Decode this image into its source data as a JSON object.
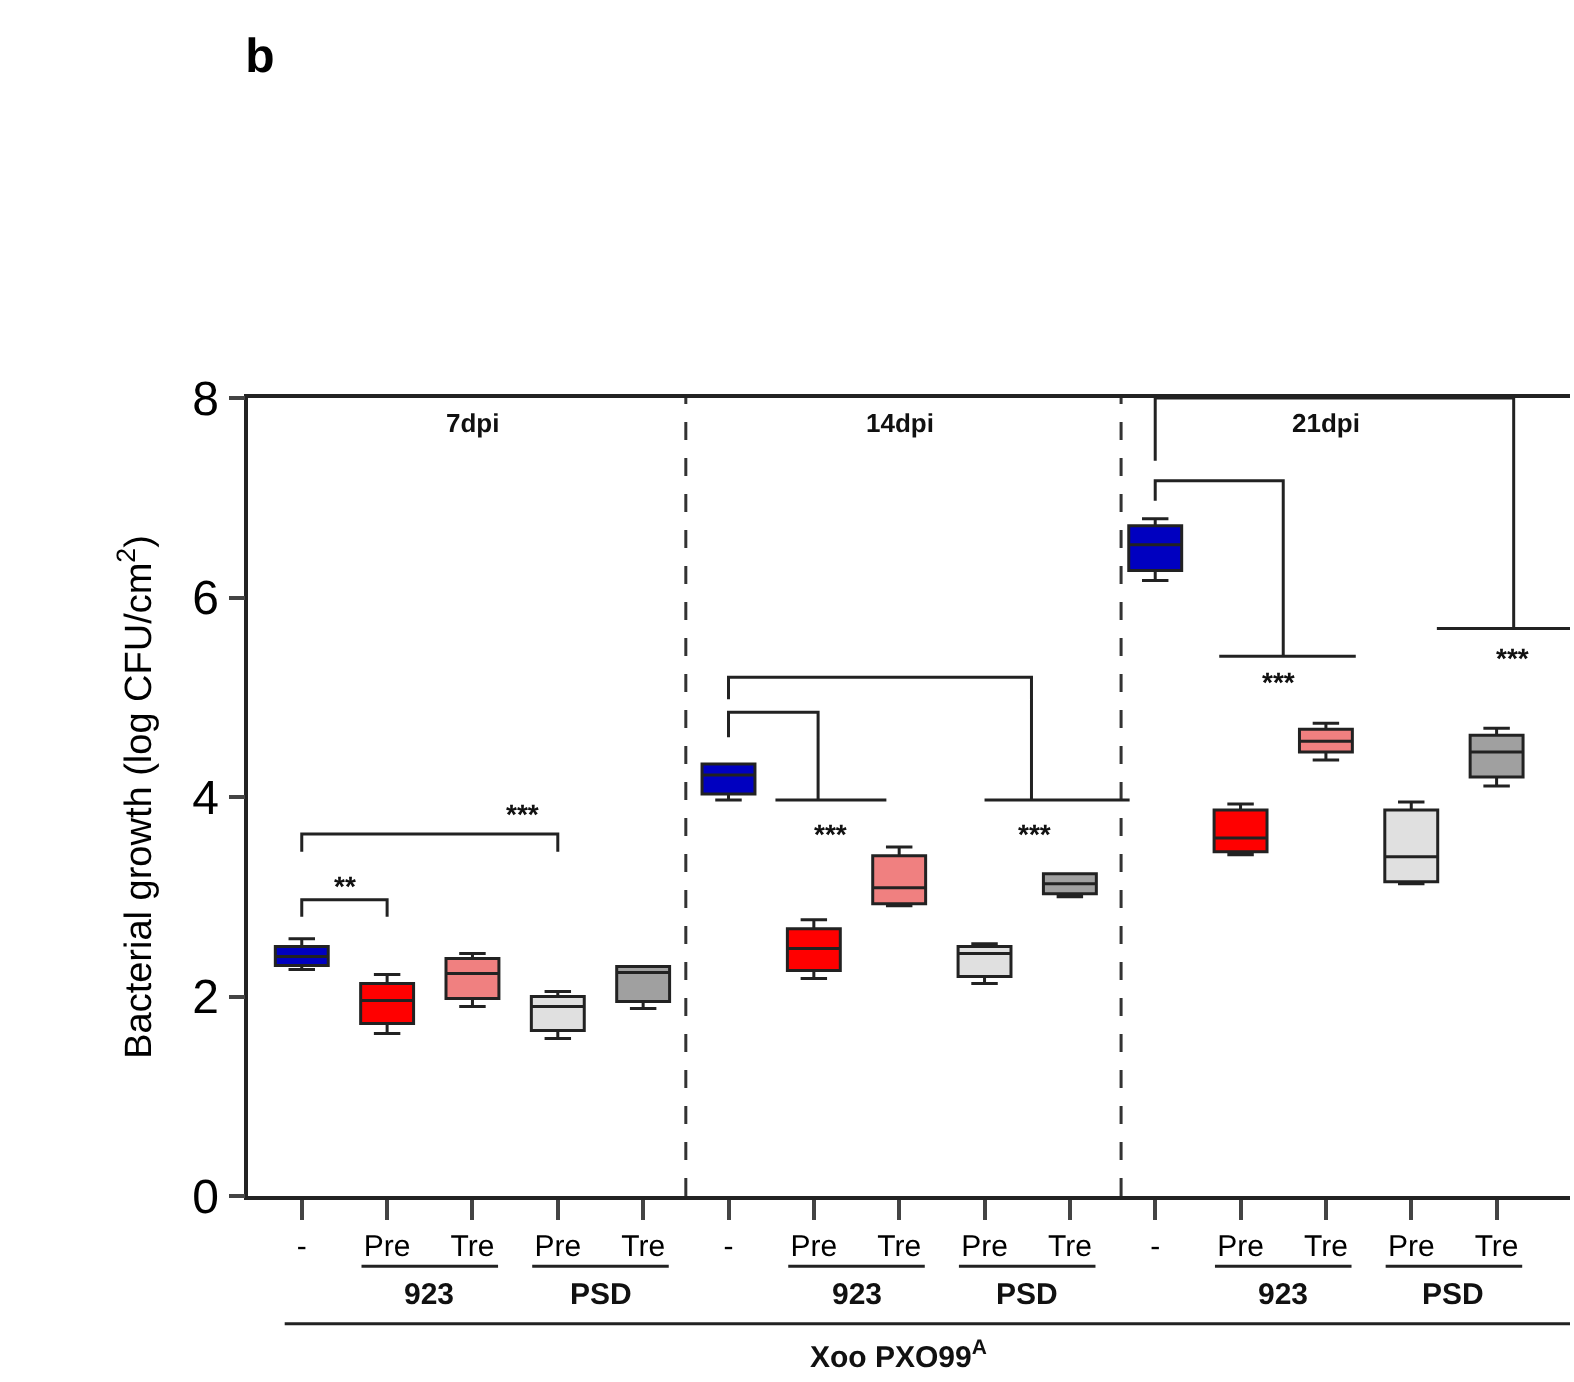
{
  "chart_data": {
    "type": "box",
    "title": "b",
    "ylabel": "Bacterial growth (log CFU/cm$^{2}$)",
    "categories": [
      "-",
      "Pre",
      "Tre",
      "Pre",
      "Tre",
      "-",
      "Pre",
      "Tre",
      "Pre",
      "Tre",
      "-",
      "Pre",
      "Tre",
      "Pre",
      "Tre"
    ],
    "colors": [
      "#0000c0",
      "#ff0000",
      "#f08080",
      "#e0e0e0",
      "#a0a0a0",
      "#0000c0",
      "#ff0000",
      "#f08080",
      "#e0e0e0",
      "#a0a0a0",
      "#0000c0",
      "#ff0000",
      "#f08080",
      "#e0e0e0",
      "#a0a0a0"
    ],
    "boxes": [
      {
        "low": 2.27,
        "q1": 2.31,
        "median": 2.4,
        "q3": 2.5,
        "high": 2.58
      },
      {
        "low": 1.63,
        "q1": 1.73,
        "median": 1.96,
        "q3": 2.13,
        "high": 2.22
      },
      {
        "low": 1.9,
        "q1": 1.98,
        "median": 2.23,
        "q3": 2.38,
        "high": 2.43
      },
      {
        "low": 1.58,
        "q1": 1.66,
        "median": 1.9,
        "q3": 2.0,
        "high": 2.05
      },
      {
        "low": 1.88,
        "q1": 1.95,
        "median": 2.24,
        "q3": 2.3,
        "high": 2.3
      },
      {
        "low": 3.97,
        "q1": 4.03,
        "median": 4.22,
        "q3": 4.33,
        "high": 4.33
      },
      {
        "low": 2.18,
        "q1": 2.26,
        "median": 2.48,
        "q3": 2.68,
        "high": 2.77
      },
      {
        "low": 2.91,
        "q1": 2.93,
        "median": 3.09,
        "q3": 3.41,
        "high": 3.5
      },
      {
        "low": 2.13,
        "q1": 2.2,
        "median": 2.43,
        "q3": 2.5,
        "high": 2.53
      },
      {
        "low": 3.0,
        "q1": 3.03,
        "median": 3.13,
        "q3": 3.23,
        "high": 3.23
      },
      {
        "low": 6.17,
        "q1": 6.27,
        "median": 6.53,
        "q3": 6.72,
        "high": 6.79
      },
      {
        "low": 3.42,
        "q1": 3.45,
        "median": 3.59,
        "q3": 3.87,
        "high": 3.93
      },
      {
        "low": 4.37,
        "q1": 4.45,
        "median": 4.56,
        "q3": 4.68,
        "high": 4.74
      },
      {
        "low": 3.13,
        "q1": 3.15,
        "median": 3.4,
        "q3": 3.87,
        "high": 3.95
      },
      {
        "low": 4.11,
        "q1": 4.2,
        "median": 4.45,
        "q3": 4.62,
        "high": 4.69
      }
    ],
    "ylim": [
      0,
      8
    ],
    "yticks": [
      0,
      2,
      4,
      6,
      8
    ],
    "annotations": [
      "7dpi",
      "14dpi",
      "21dpi",
      "**",
      "***",
      "***",
      "***",
      "***",
      "***",
      "923",
      "PSD",
      "923",
      "PSD",
      "923",
      "PSD",
      "Xoo PXO99$^{A}$"
    ]
  }
}
